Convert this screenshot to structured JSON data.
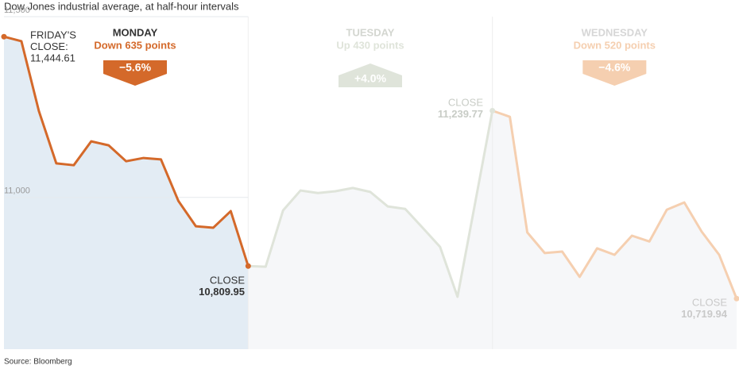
{
  "chart_data": {
    "type": "line",
    "title": "Dow Jones industrial average, at half-hour intervals",
    "source": "Source: Bloomberg",
    "categories": [
      null,
      null,
      null,
      null,
      null,
      null,
      null,
      null,
      null,
      null,
      null,
      null,
      null,
      null,
      null,
      null,
      null,
      null,
      null,
      null,
      null,
      null,
      null,
      null,
      null,
      null,
      null,
      null,
      null,
      null,
      null,
      null,
      null,
      null,
      null,
      null,
      null,
      null,
      null,
      null,
      null,
      null,
      null
    ],
    "ylim": [
      10580,
      11500
    ],
    "yticks": [
      {
        "value": 11500,
        "label": "11,500"
      },
      {
        "value": 11000,
        "label": "11,000"
      }
    ],
    "grid": true,
    "series": [
      {
        "name": "MONDAY",
        "color": "#d4692a",
        "values": [
          11444.61,
          11432,
          11239,
          11094,
          11089,
          11155,
          11144,
          11100,
          11109,
          11105,
          10990,
          10920,
          10916,
          10962,
          10809.95,
          null,
          null,
          null,
          null,
          null,
          null,
          null,
          null,
          null,
          null,
          null,
          null,
          null,
          null,
          null,
          null,
          null,
          null,
          null,
          null,
          null,
          null,
          null,
          null,
          null,
          null,
          null,
          null
        ]
      },
      {
        "name": "TUESDAY",
        "color": "#dfe4da",
        "values": [
          null,
          null,
          null,
          null,
          null,
          null,
          null,
          null,
          null,
          null,
          null,
          null,
          null,
          null,
          10809.95,
          10808,
          10964,
          11019,
          11012,
          11017,
          11026,
          11015,
          10975,
          10968,
          10916,
          10863,
          10725,
          10982,
          11239.77,
          null,
          null,
          null,
          null,
          null,
          null,
          null,
          null,
          null,
          null,
          null,
          null,
          null,
          null
        ]
      },
      {
        "name": "WEDNESDAY",
        "color": "#f5cfb0",
        "values": [
          null,
          null,
          null,
          null,
          null,
          null,
          null,
          null,
          null,
          null,
          null,
          null,
          null,
          null,
          null,
          null,
          null,
          null,
          null,
          null,
          null,
          null,
          null,
          null,
          null,
          null,
          null,
          null,
          11239.77,
          11223,
          10903,
          10846,
          10850,
          10780,
          10859,
          10841,
          10894,
          10878,
          10966,
          10986,
          10905,
          10841,
          10719.94
        ]
      }
    ],
    "days": [
      {
        "change": "Down 635 points",
        "pct": "−5.6%",
        "direction": "down",
        "name_color": "#333333",
        "arrow_color": "#d4692a"
      },
      {
        "change": "Up 430 points",
        "pct": "+4.0%",
        "direction": "up",
        "name_color": "#d3d6d0",
        "arrow_color": "#dfe4da"
      },
      {
        "change": "Down 520 points",
        "pct": "−4.6%",
        "direction": "down",
        "name_color": "#d6d6d6",
        "arrow_color": "#f5cfb0"
      }
    ],
    "annotations": [
      {
        "lines": [
          "FRIDAY'S",
          "CLOSE:",
          "11,444.61"
        ]
      },
      {
        "lines": [
          "CLOSE",
          "10,809.95"
        ]
      },
      {
        "lines": [
          "CLOSE",
          "11,239.77"
        ]
      },
      {
        "lines": [
          "CLOSE",
          "10,719.94"
        ]
      }
    ]
  }
}
